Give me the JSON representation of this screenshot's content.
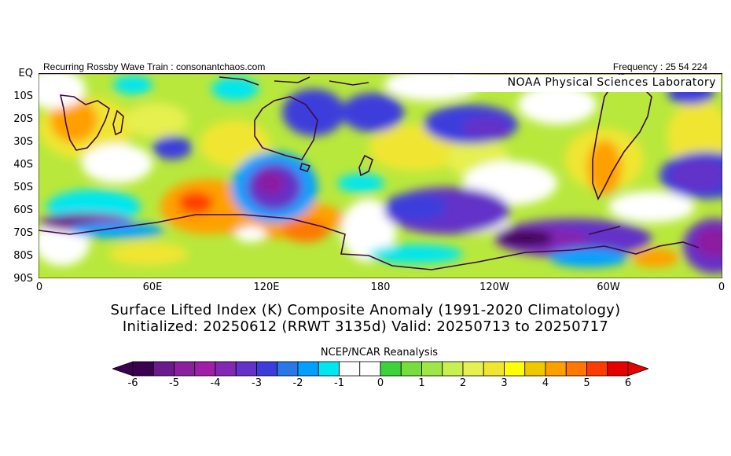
{
  "header": {
    "left_text": "Recurring Rossby Wave Train : consonantchaos.com",
    "right_text": "Frequency : 25 54 224",
    "noaa_label": "NOAA Physical Sciences Laboratory"
  },
  "map": {
    "latitude_labels": [
      "EQ",
      "10S",
      "20S",
      "30S",
      "40S",
      "50S",
      "60S",
      "70S",
      "80S",
      "90S"
    ],
    "longitude_labels": [
      "0",
      "60E",
      "120E",
      "180",
      "120W",
      "60W",
      "0"
    ],
    "lat_range": [
      0,
      -90
    ],
    "lon_range": [
      0,
      360
    ],
    "color_fill_notes": "anomaly field: purple/blue = negative (unstable), green-yellow-orange = positive (stable)"
  },
  "titles": {
    "line1": "Surface Lifted Index (K) Composite Anomaly (1991-2020 Climatology)",
    "line2": "Initialized: 20250612 (RRWT 3135d) Valid: 20250713 to 20250717"
  },
  "colorbar": {
    "source": "NCEP/NCAR Reanalysis",
    "tick_labels": [
      "-6",
      "-5",
      "-4",
      "-3",
      "-2",
      "-1",
      "0",
      "1",
      "2",
      "3",
      "4",
      "5",
      "6"
    ],
    "colors": [
      "#3c0050",
      "#6a1a8c",
      "#8c1ea0",
      "#a01ea8",
      "#8228b4",
      "#6432c8",
      "#3c3cdc",
      "#2878e6",
      "#00a0ff",
      "#00e6f0",
      "#ffffff",
      "#ffffff",
      "#3cd23c",
      "#78dc3c",
      "#a0e646",
      "#c8f050",
      "#e6f050",
      "#f0e632",
      "#ffff00",
      "#f0c800",
      "#ffa000",
      "#ff7800",
      "#ff3c00",
      "#e60000"
    ]
  }
}
